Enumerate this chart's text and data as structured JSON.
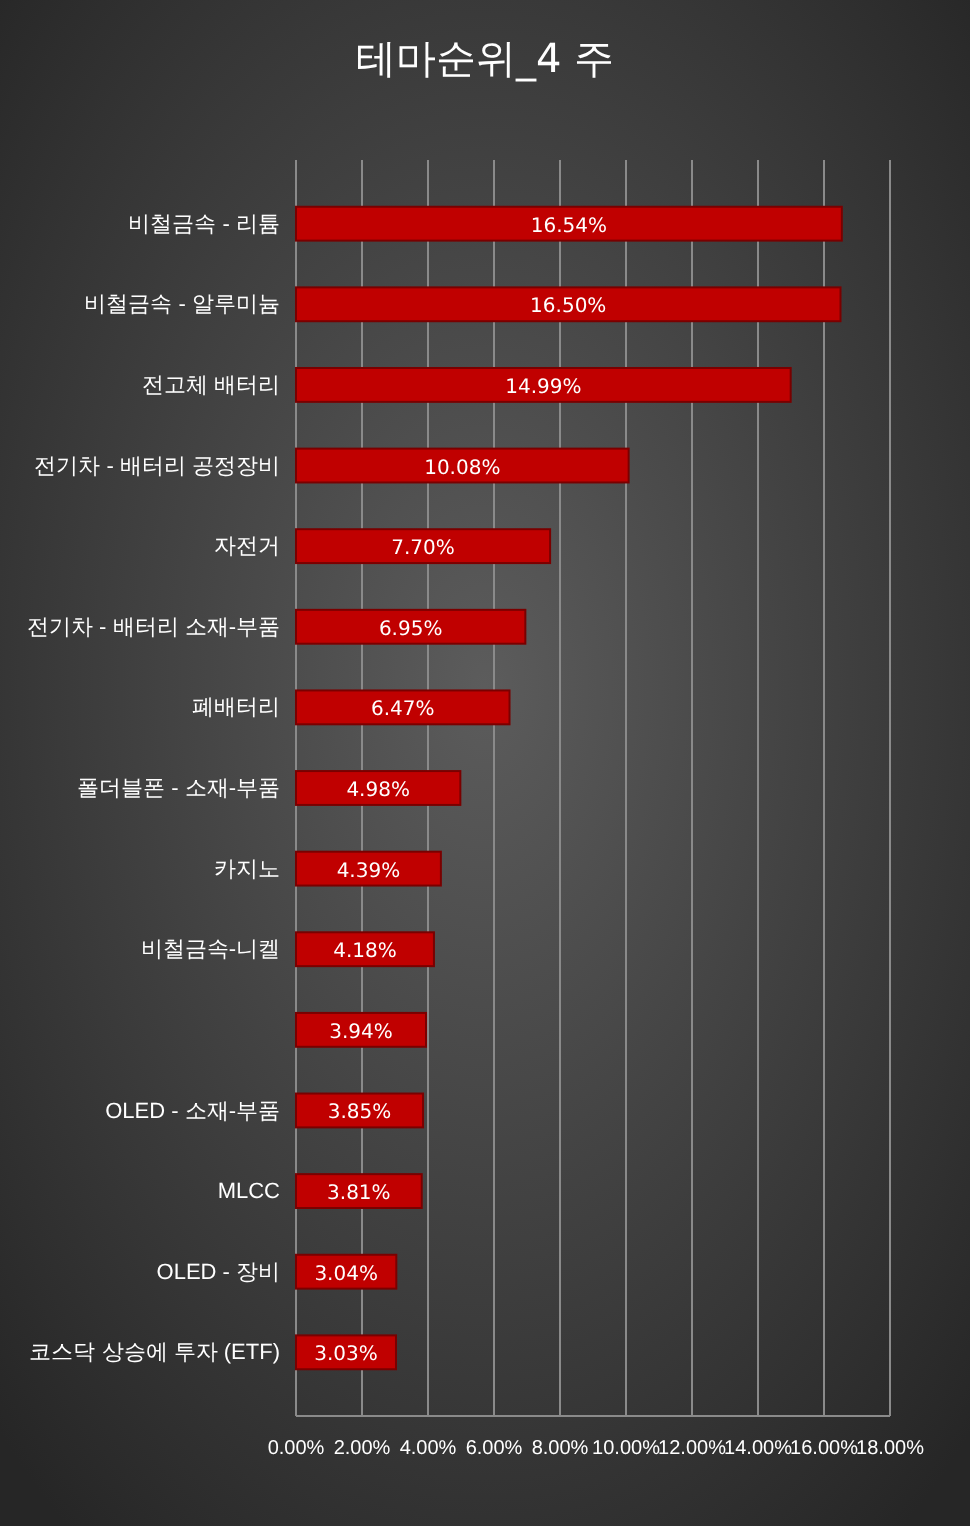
{
  "chart_data": {
    "type": "bar",
    "orientation": "horizontal",
    "title": "테마순위_4 주",
    "categories": [
      "비철금속 - 리튬",
      "비철금속 - 알루미늄",
      "전고체 배터리",
      "전기차 - 배터리 공정장비",
      "자전거",
      "전기차 - 배터리 소재-부품",
      "폐배터리",
      "폴더블폰 - 소재-부품",
      "카지노",
      "비철금속-니켈",
      null,
      "OLED - 소재-부품",
      "MLCC",
      "OLED - 장비",
      "코스닥 상승에 투자 (ETF)"
    ],
    "values": [
      16.54,
      16.5,
      14.99,
      10.08,
      7.7,
      6.95,
      6.47,
      4.98,
      4.39,
      4.18,
      3.94,
      3.85,
      3.81,
      3.04,
      3.03
    ],
    "value_labels": [
      "16.54%",
      "16.50%",
      "14.99%",
      "10.08%",
      "7.70%",
      "6.95%",
      "6.47%",
      "4.98%",
      "4.39%",
      "4.18%",
      "3.94%",
      "3.85%",
      "3.81%",
      "3.04%",
      "3.03%"
    ],
    "color": "#c00000",
    "xlim": [
      0,
      18
    ],
    "xticks": [
      {
        "value": 0,
        "label": "0.00%"
      },
      {
        "value": 2,
        "label": "2.00%"
      },
      {
        "value": 4,
        "label": "4.00%"
      },
      {
        "value": 6,
        "label": "6.00%"
      },
      {
        "value": 8,
        "label": "8.00%"
      },
      {
        "value": 10,
        "label": "10.00%"
      },
      {
        "value": 12,
        "label": "12.00%"
      },
      {
        "value": 14,
        "label": "14.00%"
      },
      {
        "value": 16,
        "label": "16.00%"
      },
      {
        "value": 18,
        "label": "18.00%"
      }
    ],
    "grid": "x"
  }
}
